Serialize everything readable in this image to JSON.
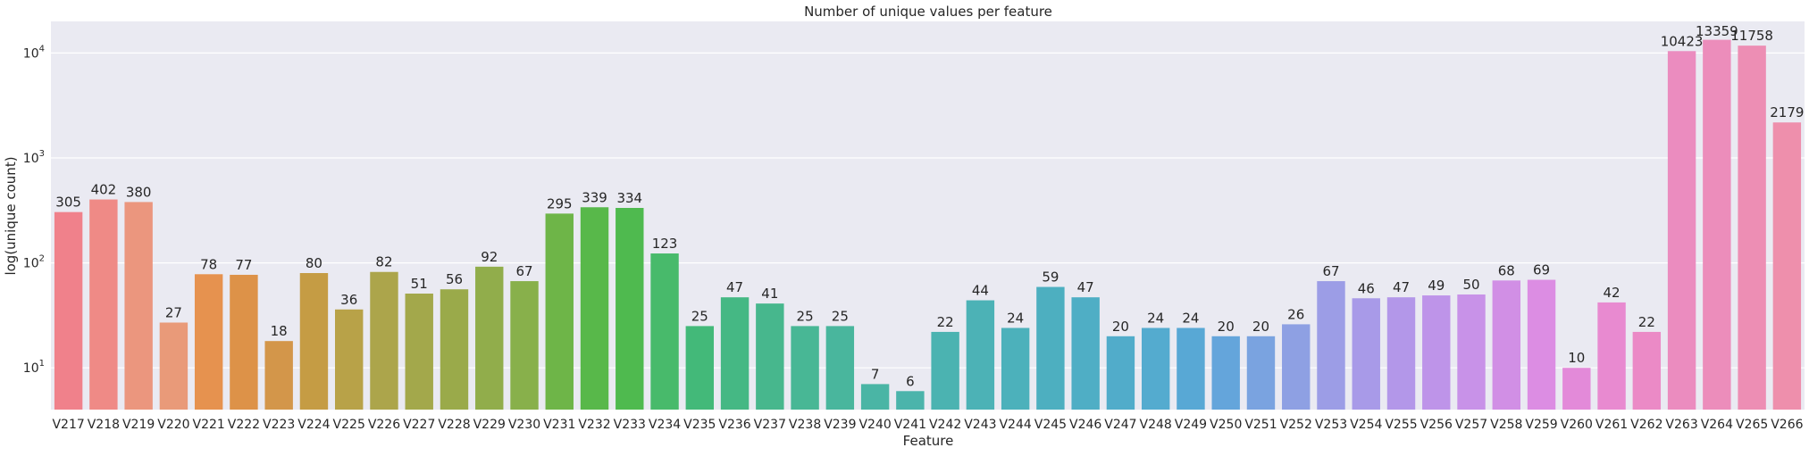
{
  "chart_data": {
    "type": "bar",
    "title": "Number of unique values per feature",
    "xlabel": "Feature",
    "ylabel": "log(unique count)",
    "yscale": "log",
    "ylim": [
      4,
      20000
    ],
    "yticks": [
      {
        "value": 10,
        "base": "10",
        "exp": "1"
      },
      {
        "value": 100,
        "base": "10",
        "exp": "2"
      },
      {
        "value": 1000,
        "base": "10",
        "exp": "3"
      },
      {
        "value": 10000,
        "base": "10",
        "exp": "4"
      }
    ],
    "grid": true,
    "background": "#eaeaf2",
    "categories": [
      "V217",
      "V218",
      "V219",
      "V220",
      "V221",
      "V222",
      "V223",
      "V224",
      "V225",
      "V226",
      "V227",
      "V228",
      "V229",
      "V230",
      "V231",
      "V232",
      "V233",
      "V234",
      "V235",
      "V236",
      "V237",
      "V238",
      "V239",
      "V240",
      "V241",
      "V242",
      "V243",
      "V244",
      "V245",
      "V246",
      "V247",
      "V248",
      "V249",
      "V250",
      "V251",
      "V252",
      "V253",
      "V254",
      "V255",
      "V256",
      "V257",
      "V258",
      "V259",
      "V260",
      "V261",
      "V262",
      "V263",
      "V264",
      "V265",
      "V266"
    ],
    "values": [
      305,
      402,
      380,
      27,
      78,
      77,
      18,
      80,
      36,
      82,
      51,
      56,
      92,
      67,
      295,
      339,
      334,
      123,
      25,
      47,
      41,
      25,
      25,
      7,
      6,
      22,
      44,
      24,
      59,
      47,
      20,
      24,
      24,
      20,
      20,
      26,
      67,
      46,
      47,
      49,
      50,
      68,
      69,
      10,
      42,
      22,
      10423,
      13359,
      11758,
      2179
    ],
    "colors": [
      "#f0818b",
      "#ef8a86",
      "#eb967e",
      "#e99a79",
      "#e6924f",
      "#dd9248",
      "#d3964a",
      "#c59c44",
      "#b8a248",
      "#aca54b",
      "#a3a84b",
      "#9aaa4a",
      "#91ad4b",
      "#88b04b",
      "#6eb548",
      "#58b84a",
      "#4fba4f",
      "#48ba6b",
      "#43b979",
      "#45b884",
      "#47b78d",
      "#48b795",
      "#49b69d",
      "#4ab5a5",
      "#4bb4ab",
      "#4bb3b1",
      "#4cb2b6",
      "#4cb1bb",
      "#4dafc0",
      "#4faec5",
      "#51acca",
      "#54abcf",
      "#58a8d5",
      "#64a5db",
      "#7aa3e0",
      "#8ea0e3",
      "#9c9de6",
      "#a89ae8",
      "#b397e9",
      "#be94e9",
      "#c892e8",
      "#d18fe5",
      "#dc8de3",
      "#e38ad9",
      "#e88ad0",
      "#eb8ac6",
      "#eb8cbf",
      "#ec8dbb",
      "#ed8eb4",
      "#ee8fac"
    ]
  }
}
